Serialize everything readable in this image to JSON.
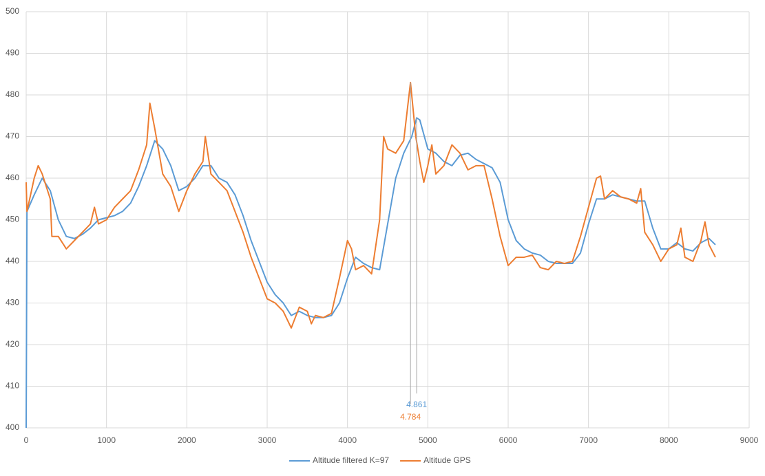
{
  "chart_data": {
    "type": "line",
    "xlim": [
      0,
      9000
    ],
    "xticks": [
      0,
      1000,
      2000,
      3000,
      4000,
      5000,
      6000,
      7000,
      8000,
      9000
    ],
    "ylim": [
      400,
      500
    ],
    "yticks": [
      400,
      410,
      420,
      430,
      440,
      450,
      460,
      470,
      480,
      490,
      500
    ],
    "grid": true,
    "legend": "bottom",
    "series": [
      {
        "name": "Altitude filtered K=97",
        "color": "#5b9bd5",
        "x": [
          0,
          10,
          100,
          200,
          300,
          400,
          500,
          600,
          700,
          800,
          900,
          1000,
          1100,
          1200,
          1300,
          1400,
          1500,
          1600,
          1700,
          1800,
          1900,
          2000,
          2100,
          2200,
          2300,
          2400,
          2500,
          2600,
          2700,
          2800,
          2900,
          3000,
          3100,
          3200,
          3300,
          3400,
          3500,
          3600,
          3700,
          3800,
          3900,
          4000,
          4100,
          4200,
          4300,
          4400,
          4500,
          4600,
          4700,
          4800,
          4861,
          4900,
          5000,
          5100,
          5200,
          5300,
          5400,
          5500,
          5600,
          5700,
          5800,
          5900,
          6000,
          6100,
          6200,
          6300,
          6400,
          6500,
          6600,
          6700,
          6800,
          6900,
          7000,
          7100,
          7200,
          7300,
          7400,
          7500,
          7600,
          7700,
          7800,
          7900,
          8000,
          8100,
          8200,
          8300,
          8400,
          8500,
          8580
        ],
        "values": [
          400,
          452,
          456,
          460,
          457,
          450,
          446,
          445.5,
          446.5,
          448,
          450,
          450.5,
          451,
          452,
          454,
          458,
          463,
          469,
          467,
          463,
          457,
          458,
          460,
          463,
          463,
          460,
          459,
          456,
          451,
          445,
          440,
          435,
          432,
          430,
          427,
          428,
          427,
          426.5,
          426.5,
          427,
          430,
          436,
          441,
          439.5,
          438.5,
          438,
          449,
          460,
          466,
          470,
          474.5,
          474,
          467,
          466,
          464,
          463,
          465.5,
          466,
          464.5,
          463.5,
          462.5,
          459,
          450,
          445,
          443,
          442,
          441.5,
          440,
          439.5,
          439.5,
          439.5,
          442,
          449,
          455,
          455,
          456,
          455.5,
          455,
          454.5,
          454.5,
          448,
          443,
          443,
          444.5,
          443,
          442.5,
          444.5,
          445.5,
          444
        ]
      },
      {
        "name": "Altitude GPS",
        "color": "#ed7d31",
        "x": [
          0,
          10,
          100,
          150,
          200,
          300,
          320,
          400,
          500,
          600,
          700,
          800,
          850,
          900,
          1000,
          1100,
          1200,
          1300,
          1400,
          1500,
          1540,
          1600,
          1700,
          1800,
          1900,
          2000,
          2100,
          2200,
          2230,
          2300,
          2400,
          2500,
          2600,
          2700,
          2800,
          2900,
          3000,
          3100,
          3200,
          3300,
          3400,
          3500,
          3550,
          3600,
          3700,
          3800,
          3900,
          4000,
          4050,
          4100,
          4200,
          4300,
          4400,
          4450,
          4500,
          4600,
          4700,
          4784,
          4850,
          4900,
          4950,
          5000,
          5050,
          5100,
          5200,
          5300,
          5400,
          5500,
          5600,
          5700,
          5800,
          5900,
          6000,
          6100,
          6200,
          6300,
          6400,
          6500,
          6600,
          6700,
          6800,
          6900,
          7000,
          7100,
          7150,
          7200,
          7300,
          7400,
          7500,
          7600,
          7650,
          7700,
          7800,
          7900,
          8000,
          8100,
          8150,
          8200,
          8300,
          8400,
          8450,
          8500,
          8580
        ],
        "values": [
          459,
          452,
          460,
          463,
          461,
          455,
          446,
          446,
          443,
          445,
          447,
          449,
          453,
          449,
          450,
          453,
          455,
          457,
          462,
          468,
          478,
          472,
          461,
          458,
          452,
          457,
          461,
          464,
          470,
          461,
          459,
          457,
          452,
          447,
          441,
          436,
          431,
          430,
          428,
          424,
          429,
          428,
          425,
          427,
          426.5,
          427.5,
          436,
          445,
          443,
          438,
          439,
          437,
          450,
          470,
          467,
          466,
          469,
          483,
          470,
          464,
          459,
          463,
          468,
          461,
          463,
          468,
          466,
          462,
          463,
          463,
          455,
          446,
          439,
          441,
          441,
          441.5,
          438.5,
          438,
          440,
          439.5,
          440,
          446,
          453,
          460,
          460.5,
          455,
          457,
          455.5,
          455,
          454,
          457.5,
          447,
          444,
          440,
          443,
          444,
          448,
          441,
          440,
          445,
          449.5,
          444,
          441
        ]
      }
    ],
    "annotations": [
      {
        "label": "4.861",
        "x": 4861,
        "color": "#5b9bd5"
      },
      {
        "label": "4.784",
        "x": 4784,
        "color": "#ed7d31"
      }
    ]
  }
}
